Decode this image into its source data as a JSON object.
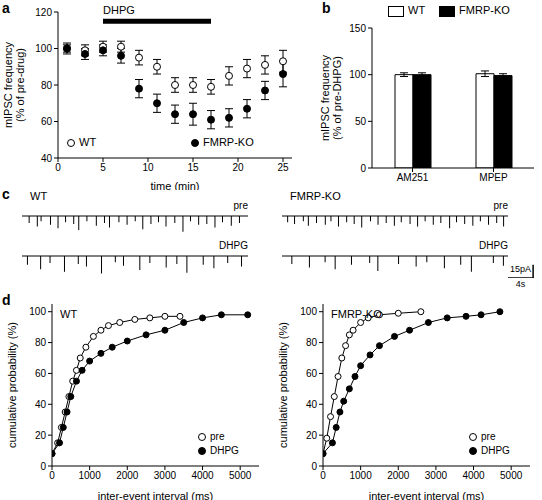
{
  "chart_data": [
    {
      "panel": "a",
      "type": "scatter",
      "x": [
        1,
        3,
        5,
        7,
        9,
        11,
        13,
        15,
        17,
        19,
        21,
        23,
        25
      ],
      "xlabel": "time (min)",
      "ylabel": [
        "mIPSC frequency",
        "(% of pre-drug)"
      ],
      "xlim": [
        0,
        26
      ],
      "xticks": [
        0,
        5,
        10,
        15,
        20,
        25
      ],
      "ylim": [
        40,
        120
      ],
      "yticks": [
        40,
        60,
        80,
        100,
        120
      ],
      "legend": "bottom",
      "series": [
        {
          "name": "WT",
          "color": "#000000",
          "marker": "open circle",
          "values": [
            100,
            99,
            101,
            101,
            95,
            90,
            80,
            80,
            79,
            85,
            89,
            91,
            93
          ],
          "error": [
            3,
            3,
            3,
            3,
            4,
            4,
            4,
            4,
            4,
            5,
            5,
            5,
            6
          ]
        },
        {
          "name": "FMRP-KO",
          "color": "#000000",
          "marker": "filled circle",
          "values": [
            100,
            97,
            99,
            96,
            78,
            70,
            64,
            64,
            61,
            62,
            67,
            77,
            86
          ],
          "error": [
            2,
            3,
            3,
            4,
            5,
            5,
            5,
            6,
            5,
            5,
            5,
            5,
            7
          ]
        }
      ],
      "annotation": {
        "text": "DHPG",
        "x": [
          5,
          17
        ],
        "y": 115
      }
    },
    {
      "panel": "b",
      "type": "bar",
      "categories": [
        "AM251",
        "MPEP"
      ],
      "ylabel": [
        "mIPSC frequency",
        "(% of pre-DHPG)"
      ],
      "ylim": [
        0,
        150
      ],
      "yticks": [
        0,
        50,
        100,
        150
      ],
      "legend": "top",
      "series": [
        {
          "name": "WT",
          "color": "#ffffff",
          "values": [
            100,
            101
          ],
          "error": [
            2,
            3
          ]
        },
        {
          "name": "FMRP-KO",
          "color": "#000000",
          "values": [
            100,
            99
          ],
          "error": [
            2,
            2
          ]
        }
      ]
    },
    {
      "panel": "c",
      "type": "trace",
      "xlim": [
        0,
        36
      ],
      "ylim": [
        -25,
        0
      ],
      "tick_labels": false,
      "groups": [
        {
          "title": "WT",
          "traces": [
            {
              "name": "pre",
              "x": [
                1.2,
                2.5,
                3.1,
                4.6,
                5.8,
                7.0,
                8.3,
                9.1,
                10.4,
                11.9,
                13.2,
                14.0,
                15.5,
                16.8,
                18.1,
                19.3,
                20.6,
                21.8,
                23.0,
                24.4,
                25.7,
                26.9,
                28.2,
                29.5,
                30.8,
                32.0,
                33.4,
                34.7
              ],
              "values": [
                -8,
                -12,
                -6,
                -10,
                -14,
                -7,
                -9,
                -16,
                -6,
                -11,
                -8,
                -13,
                -7,
                -10,
                -6,
                -15,
                -9,
                -7,
                -12,
                -8,
                -18,
                -6,
                -10,
                -9,
                -13,
                -7,
                -11,
                -8
              ]
            },
            {
              "name": "DHPG",
              "x": [
                0.8,
                2.9,
                4.4,
                6.7,
                8.9,
                10.2,
                12.6,
                14.8,
                16.1,
                18.7,
                20.3,
                22.9,
                24.6,
                26.2,
                28.8,
                30.5,
                32.7,
                34.9
              ],
              "values": [
                -10,
                -15,
                -8,
                -18,
                -9,
                -12,
                -20,
                -7,
                -11,
                -16,
                -8,
                -13,
                -9,
                -19,
                -10,
                -14,
                -8,
                -12
              ]
            }
          ]
        },
        {
          "title": "FMRP-KO",
          "traces": [
            {
              "name": "pre",
              "x": [
                0.9,
                2.0,
                3.4,
                4.2,
                5.5,
                6.9,
                7.8,
                9.0,
                10.3,
                11.5,
                12.7,
                14.1,
                15.3,
                16.6,
                17.9,
                19.0,
                20.4,
                21.6,
                22.8,
                24.1,
                25.3,
                26.7,
                27.8,
                29.1,
                30.4,
                31.6,
                32.9,
                34.2,
                35.3
              ],
              "values": [
                -7,
                -9,
                -6,
                -11,
                -8,
                -10,
                -6,
                -12,
                -7,
                -9,
                -13,
                -6,
                -10,
                -8,
                -11,
                -7,
                -9,
                -12,
                -6,
                -10,
                -8,
                -14,
                -7,
                -9,
                -11,
                -6,
                -10,
                -8,
                -12
              ]
            },
            {
              "name": "DHPG",
              "x": [
                1.5,
                4.3,
                6.8,
                8.4,
                11.0,
                13.9,
                15.2,
                18.5,
                21.3,
                23.0,
                25.8,
                28.4,
                30.1,
                33.6,
                35.2
              ],
              "values": [
                -9,
                -13,
                -7,
                -15,
                -10,
                -8,
                -17,
                -9,
                -12,
                -7,
                -14,
                -10,
                -18,
                -8,
                -11
              ]
            }
          ]
        }
      ],
      "scale_bar": {
        "amplitude": 15,
        "amplitude_label": "15pA",
        "duration": 4,
        "duration_label": "4s"
      }
    },
    {
      "panel": "d",
      "type": "line",
      "title": "WT",
      "xlabel": "inter-event interval (ms)",
      "ylabel": "cumulative probability (%)",
      "xlim": [
        0,
        5500
      ],
      "xticks": [
        0,
        1000,
        2000,
        3000,
        4000,
        5000
      ],
      "ylim": [
        0,
        105
      ],
      "yticks": [
        0,
        20,
        40,
        60,
        80,
        100
      ],
      "legend": "lower right",
      "series": [
        {
          "name": "pre",
          "color": "#000000",
          "marker": "open circle",
          "x": [
            0,
            150,
            250,
            350,
            450,
            550,
            650,
            750,
            900,
            1100,
            1300,
            1500,
            1800,
            2200,
            2600,
            3000,
            3400
          ],
          "values": [
            8,
            15,
            25,
            35,
            45,
            55,
            62,
            70,
            77,
            84,
            88,
            91,
            93,
            95,
            96,
            97,
            97
          ]
        },
        {
          "name": "DHPG",
          "color": "#000000",
          "marker": "filled circle",
          "x": [
            0,
            200,
            300,
            400,
            500,
            650,
            800,
            1000,
            1300,
            1600,
            2000,
            2500,
            3000,
            3500,
            4000,
            4500,
            5200
          ],
          "values": [
            8,
            15,
            25,
            35,
            45,
            55,
            62,
            68,
            73,
            77,
            81,
            85,
            88,
            93,
            96,
            98,
            98
          ]
        }
      ]
    },
    {
      "type": "line",
      "title": "FMRP-KO",
      "xlabel": "inter-event interval (ms)",
      "ylabel": "cumulative probability (%)",
      "xlim": [
        0,
        5500
      ],
      "xticks": [
        0,
        1000,
        2000,
        3000,
        4000,
        5000
      ],
      "ylim": [
        0,
        105
      ],
      "yticks": [
        0,
        20,
        40,
        60,
        80,
        100
      ],
      "legend": "lower right",
      "series": [
        {
          "name": "pre",
          "color": "#000000",
          "marker": "open circle",
          "x": [
            0,
            100,
            200,
            300,
            400,
            500,
            600,
            700,
            800,
            1000,
            1200,
            1500,
            2000,
            2600
          ],
          "values": [
            8,
            18,
            32,
            45,
            58,
            70,
            78,
            85,
            88,
            93,
            96,
            98,
            99,
            100
          ]
        },
        {
          "name": "DHPG",
          "color": "#000000",
          "marker": "filled circle",
          "x": [
            0,
            250,
            350,
            450,
            550,
            700,
            850,
            1000,
            1250,
            1500,
            1900,
            2300,
            2800,
            3300,
            3800,
            4200,
            4700
          ],
          "values": [
            8,
            15,
            25,
            35,
            42,
            50,
            58,
            65,
            72,
            78,
            84,
            88,
            93,
            96,
            97,
            98,
            100
          ]
        }
      ]
    }
  ]
}
